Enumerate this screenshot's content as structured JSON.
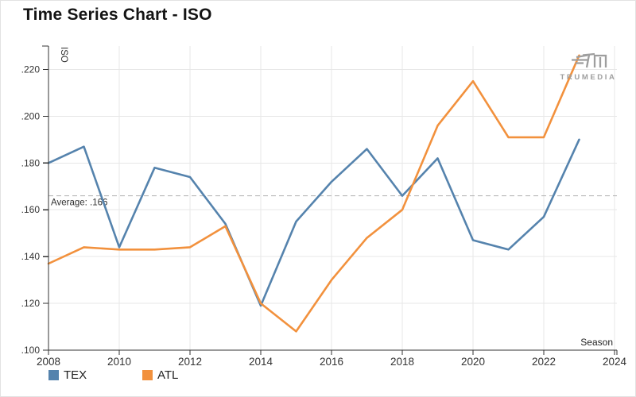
{
  "title": "Time Series Chart - ISO",
  "watermark": {
    "brand": "TRUMEDIA"
  },
  "colors": {
    "tex": "#5583ad",
    "atl": "#f2913d",
    "grid": "#e7e7e7",
    "axis": "#333333",
    "average_line": "#b8b8b8",
    "text": "#333333",
    "logo": "#9e9e9e"
  },
  "chart_data": {
    "type": "line",
    "title": "Time Series Chart - ISO",
    "xlabel": "Season",
    "ylabel": "ISO",
    "x": [
      2008,
      2009,
      2010,
      2011,
      2012,
      2013,
      2014,
      2015,
      2016,
      2017,
      2018,
      2019,
      2020,
      2021,
      2022,
      2023
    ],
    "series": [
      {
        "name": "TEX",
        "color": "#5583ad",
        "values": [
          0.18,
          0.187,
          0.144,
          0.178,
          0.174,
          0.154,
          0.119,
          0.155,
          0.172,
          0.186,
          0.166,
          0.182,
          0.147,
          0.143,
          0.157,
          0.19
        ]
      },
      {
        "name": "ATL",
        "color": "#f2913d",
        "values": [
          0.137,
          0.144,
          0.143,
          0.143,
          0.144,
          0.153,
          0.12,
          0.108,
          0.13,
          0.148,
          0.16,
          0.196,
          0.215,
          0.191,
          0.191,
          0.226
        ]
      }
    ],
    "average_line": {
      "value": 0.166,
      "label": "Average: .166"
    },
    "x_ticks": [
      2008,
      2010,
      2012,
      2014,
      2016,
      2018,
      2020,
      2022,
      2024
    ],
    "y_ticks": [
      {
        "value": 0.1,
        "label": ".100"
      },
      {
        "value": 0.12,
        "label": ".120"
      },
      {
        "value": 0.14,
        "label": ".140"
      },
      {
        "value": 0.16,
        "label": ".160"
      },
      {
        "value": 0.18,
        "label": ".180"
      },
      {
        "value": 0.2,
        "label": ".200"
      },
      {
        "value": 0.22,
        "label": ".220"
      }
    ],
    "xlim": [
      2008,
      2024
    ],
    "ylim": [
      0.1,
      0.23
    ],
    "grid": true,
    "legend_position": "bottom-left"
  }
}
